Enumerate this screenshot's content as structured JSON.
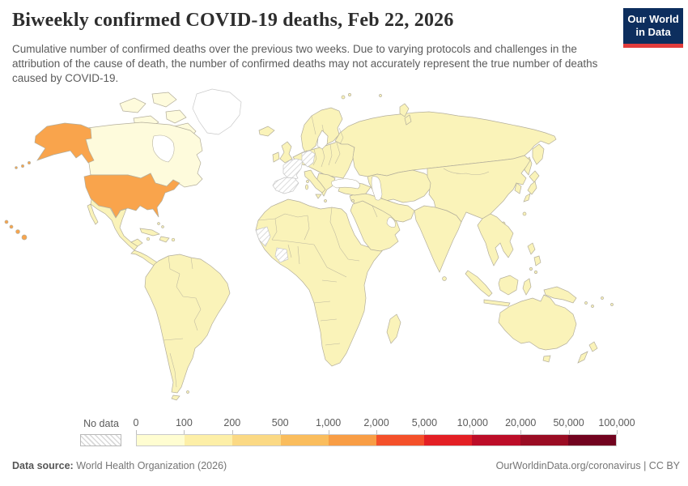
{
  "header": {
    "title": "Biweekly confirmed COVID-19 deaths, Feb 22, 2026",
    "subtitle": "Cumulative number of confirmed deaths over the previous two weeks. Due to varying protocols and challenges in the attribution of the cause of death, the number of confirmed deaths may not accurately represent the true number of deaths caused by COVID-19.",
    "logo": {
      "line1": "Our World",
      "line2": "in Data",
      "bg_color": "#0d2e5e",
      "accent_color": "#e23c3c"
    }
  },
  "map": {
    "colors": {
      "default_land": "#faf3b9",
      "land_lighter": "#fefbdc",
      "usa_orange": "#f9a44c",
      "border": "#b3ae9b",
      "no_data_stroke": "#c6c6c6",
      "ocean": "#ffffff"
    }
  },
  "legend": {
    "no_data_label": "No data",
    "tick_labels": [
      "0",
      "100",
      "200",
      "500",
      "1,000",
      "2,000",
      "5,000",
      "10,000",
      "20,000",
      "50,000",
      "100,000"
    ],
    "colors": [
      "#fffdd1",
      "#fdefa7",
      "#fbd984",
      "#fabd5d",
      "#f89d45",
      "#f4502a",
      "#e31f24",
      "#bc0d28",
      "#9a0c23",
      "#72031f"
    ]
  },
  "footer": {
    "source_label": "Data source:",
    "source_value": " World Health Organization (2026)",
    "right_text": "OurWorldinData.org/coronavirus | CC BY"
  },
  "chart_data": {
    "type": "choropleth",
    "title": "Biweekly confirmed COVID-19 deaths",
    "date": "Feb 22, 2026",
    "unit": "confirmed deaths over the previous two weeks",
    "legend_position": "bottom",
    "color_scale": {
      "bin_edges": [
        "0",
        "100",
        "200",
        "500",
        "1,000",
        "2,000",
        "5,000",
        "10,000",
        "20,000",
        "50,000",
        "100,000"
      ],
      "bin_colors": [
        "#fffdd1",
        "#fdefa7",
        "#fbd984",
        "#fabd5d",
        "#f89d45",
        "#f4502a",
        "#e31f24",
        "#bc0d28",
        "#9a0c23",
        "#72031f"
      ],
      "no_data_style": "white with diagonal gray hatching"
    },
    "values_by_region": [
      {
        "region": "United States (incl. Alaska and Hawaii)",
        "bin": "500–2,000",
        "color_seen": "#f9a44c"
      },
      {
        "region": "Canada",
        "bin": "0–100",
        "color_seen": "#fefbdc"
      },
      {
        "region": "Most other reporting countries (rest of world)",
        "bin": "0–200",
        "color_seen": "#faf3b9"
      },
      {
        "region": "France",
        "bin": "No data"
      },
      {
        "region": "Germany",
        "bin": "No data"
      },
      {
        "region": "Spain",
        "bin": "No data"
      },
      {
        "region": "Western Sahara",
        "bin": "No data"
      },
      {
        "region": "Côte d'Ivoire",
        "bin": "No data"
      },
      {
        "region": "Greenland",
        "bin": "No data / not shaded"
      }
    ]
  }
}
